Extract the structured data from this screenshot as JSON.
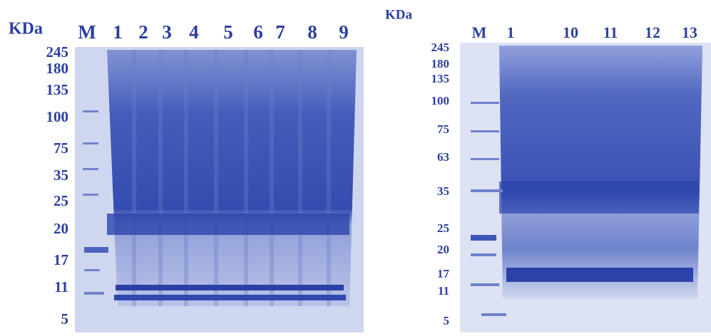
{
  "panels": [
    {
      "unit_label": "KDa",
      "lanes": [
        "M",
        "1",
        "2",
        "3",
        "4",
        "5",
        "6",
        "7",
        "8",
        "9"
      ],
      "markers": [
        "245",
        "180",
        "135",
        "100",
        "75",
        "35",
        "25",
        "20",
        "17",
        "11",
        "5"
      ]
    },
    {
      "unit_label": "KDa",
      "lanes": [
        "M",
        "1",
        "10",
        "11",
        "12",
        "13"
      ],
      "markers": [
        "245",
        "180",
        "135",
        "100",
        "75",
        "63",
        "35",
        "25",
        "20",
        "17",
        "11",
        "5"
      ]
    }
  ]
}
